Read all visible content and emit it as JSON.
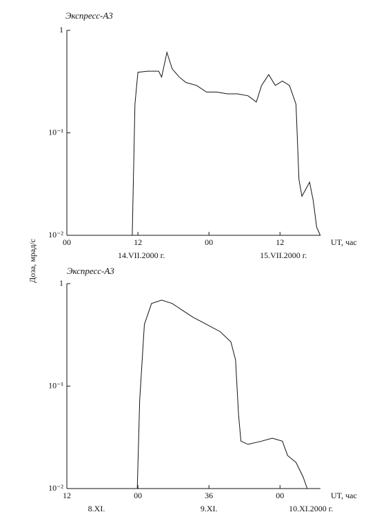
{
  "chart_data": [
    {
      "type": "line",
      "title": "Экспресс-А3",
      "ylabel": "Доза, мрад/с",
      "xlabel": "UT, час",
      "x": [
        11.05,
        11.5,
        12.0,
        13.7,
        15.5,
        16.0,
        16.9,
        17.8,
        19.0,
        20.1,
        21.9,
        23.6,
        25.3,
        27.1,
        28.8,
        30.6,
        32.0,
        32.9,
        34.1,
        35.2,
        36.4,
        37.6,
        38.7,
        39.2,
        39.7,
        41.0,
        41.6,
        42.2,
        42.8
      ],
      "values": [
        0.01,
        0.19,
        0.39,
        0.4,
        0.4,
        0.35,
        0.61,
        0.42,
        0.35,
        0.31,
        0.29,
        0.25,
        0.25,
        0.24,
        0.24,
        0.23,
        0.2,
        0.29,
        0.37,
        0.29,
        0.32,
        0.29,
        0.19,
        0.035,
        0.024,
        0.033,
        0.022,
        0.012,
        0.01
      ],
      "color": "#111111",
      "log_y": true,
      "xlim": [
        0,
        44
      ],
      "xticks": [
        {
          "value": 0,
          "label": "00"
        },
        12,
        {
          "value": 24,
          "label": "00"
        },
        {
          "value": 36,
          "label": "12"
        }
      ],
      "xtick_dates": [
        null,
        "14.VII.2000 г.",
        null,
        "15.VII.2000 г."
      ],
      "ylim": [
        0.01,
        1
      ],
      "yticks": [
        {
          "value": 0.01,
          "label": "10⁻²"
        },
        {
          "value": 0.1,
          "label": "10⁻¹"
        },
        1
      ]
    },
    {
      "type": "line",
      "title": "Экспресс-А3",
      "xlabel": "UT, час",
      "x": [
        23.9,
        24.3,
        25.1,
        26.3,
        28.0,
        29.8,
        31.5,
        33.3,
        35.6,
        37.9,
        39.7,
        40.5,
        41.0,
        41.4,
        42.6,
        44.9,
        46.7,
        48.4,
        49.3,
        50.7,
        51.9,
        52.6
      ],
      "values": [
        0.01,
        0.073,
        0.4,
        0.64,
        0.69,
        0.64,
        0.55,
        0.47,
        0.4,
        0.34,
        0.27,
        0.18,
        0.053,
        0.029,
        0.027,
        0.029,
        0.031,
        0.029,
        0.021,
        0.018,
        0.013,
        0.01
      ],
      "color": "#111111",
      "log_y": true,
      "xlim": [
        12,
        56
      ],
      "xticks": [
        12,
        {
          "value": 24,
          "label": "00"
        },
        36,
        {
          "value": 48,
          "label": "00"
        }
      ],
      "xtick_dates": [
        "8.XI.",
        null,
        "9.XI.",
        "10.XI.2000 г."
      ],
      "ylim": [
        0.01,
        1
      ],
      "yticks": [
        {
          "value": 0.01,
          "label": "10⁻²"
        },
        {
          "value": 0.1,
          "label": "10⁻¹"
        },
        1
      ]
    }
  ]
}
